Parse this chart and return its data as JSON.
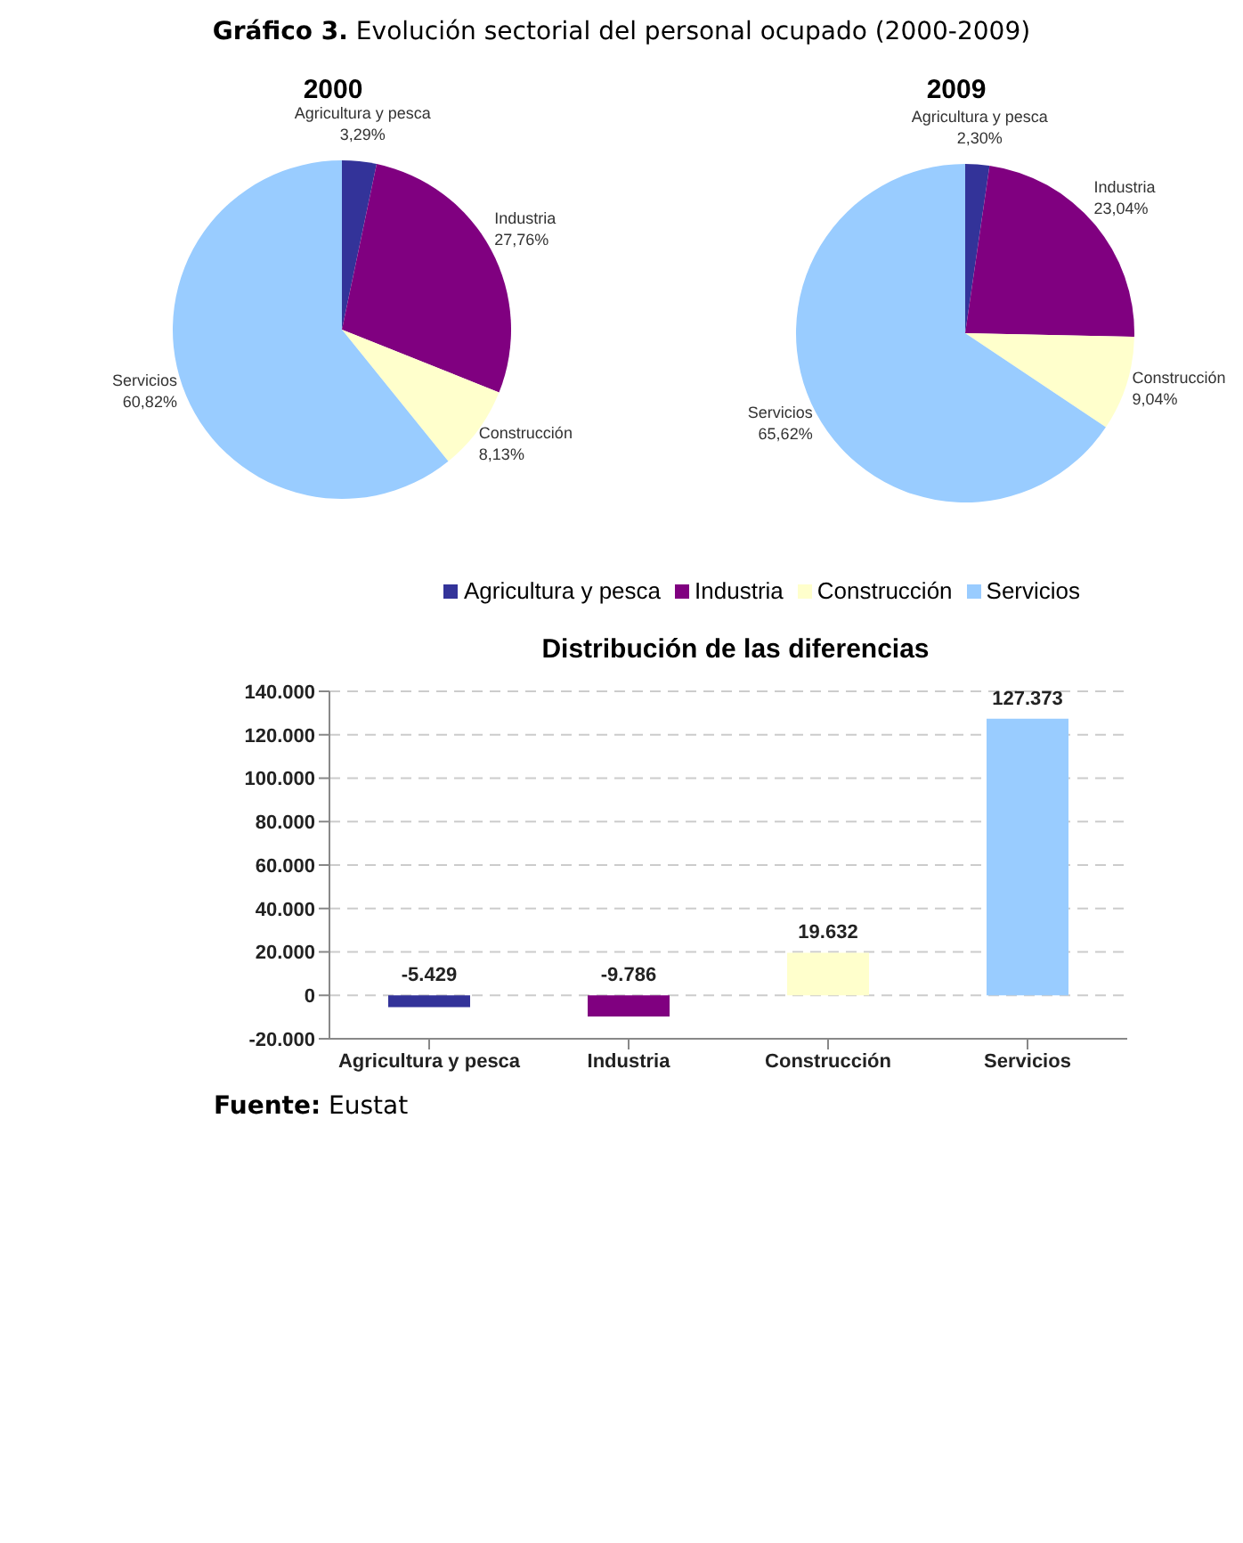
{
  "chart_data": [
    {
      "type": "pie",
      "title": "2000",
      "annotations": [
        "Gráfico 3. Evolución sectorial del personal ocupado (2000-2009)"
      ],
      "categories": [
        "Agricultura y pesca",
        "Industria",
        "Construcción",
        "Servicios"
      ],
      "values": [
        3.29,
        27.76,
        8.13,
        60.82
      ],
      "colors": [
        "#333399",
        "#800080",
        "#ffffcc",
        "#99ccff"
      ],
      "value_labels": [
        "3,29%",
        "27,76%",
        "8,13%",
        "60,82%"
      ]
    },
    {
      "type": "pie",
      "title": "2009",
      "categories": [
        "Agricultura y pesca",
        "Industria",
        "Construcción",
        "Servicios"
      ],
      "values": [
        2.3,
        23.04,
        9.04,
        65.62
      ],
      "colors": [
        "#333399",
        "#800080",
        "#ffffcc",
        "#99ccff"
      ],
      "value_labels": [
        "2,30%",
        "23,04%",
        "9,04%",
        "65,62%"
      ],
      "legend": "bottom"
    },
    {
      "type": "bar",
      "title": "Distribución de las diferencias",
      "annotations": [
        "Fuente: Eustat"
      ],
      "categories": [
        "Agricultura y pesca",
        "Industria",
        "Construcción",
        "Servicios"
      ],
      "values": [
        -5429,
        -9786,
        19632,
        127373
      ],
      "colors": [
        "#333399",
        "#800080",
        "#ffffcc",
        "#99ccff"
      ],
      "value_labels": [
        "-5.429",
        "-9.786",
        "19.632",
        "127.373"
      ],
      "ylim": [
        -20000,
        140000
      ],
      "yticks": [
        {
          "value": -20000,
          "label": "-20.000"
        },
        0,
        {
          "value": 20000,
          "label": "20.000"
        },
        {
          "value": 40000,
          "label": "40.000"
        },
        {
          "value": 60000,
          "label": "60.000"
        },
        {
          "value": 80000,
          "label": "80.000"
        },
        {
          "value": 100000,
          "label": "100.000"
        },
        {
          "value": 120000,
          "label": "120.000"
        },
        {
          "value": 140000,
          "label": "140.000"
        }
      ],
      "grid": "y"
    }
  ]
}
